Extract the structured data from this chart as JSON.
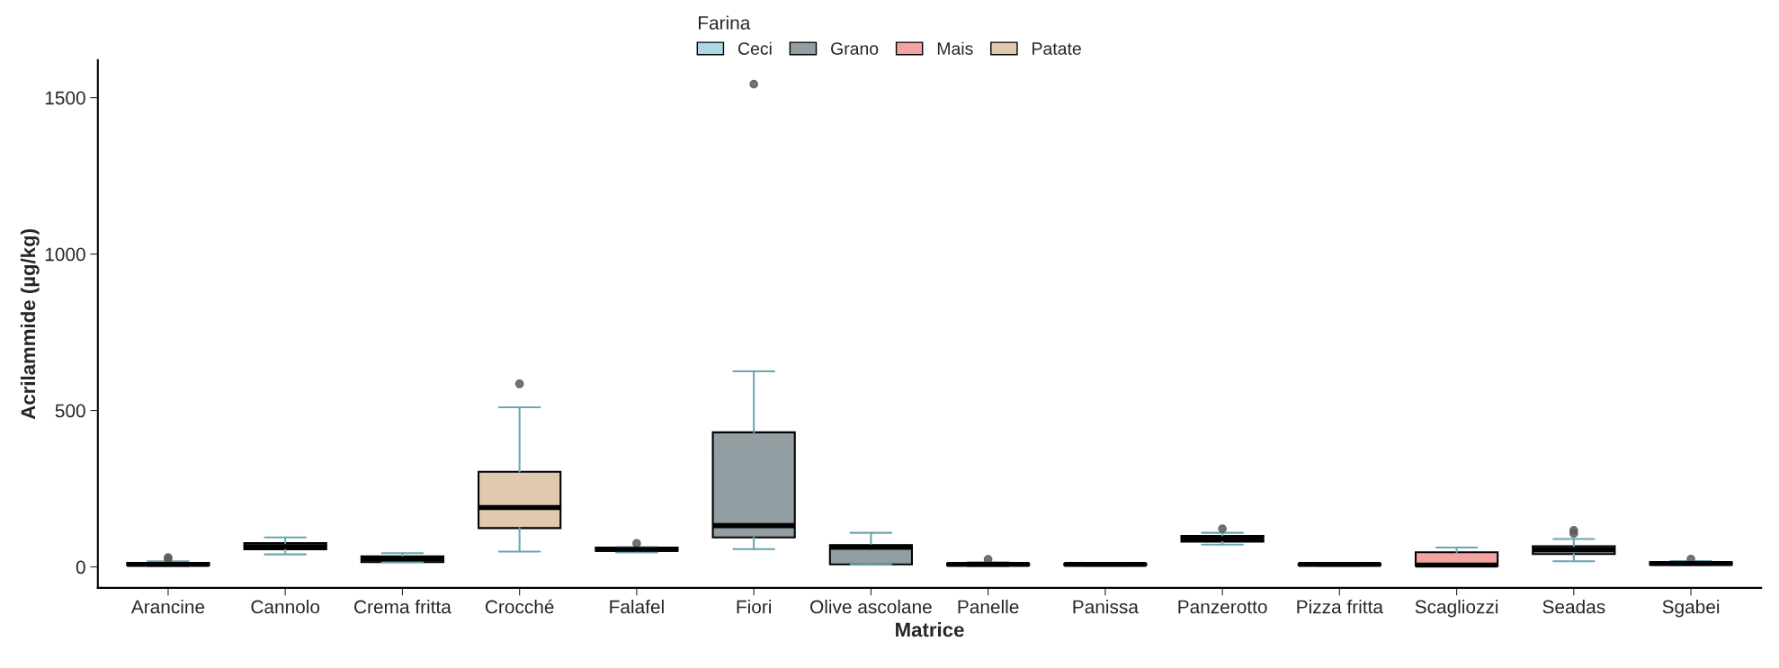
{
  "chart_data": {
    "type": "box",
    "xlabel": "Matrice",
    "ylabel": "Acrilammide (µg/kg)",
    "legend_title": "Farina",
    "legend": "top",
    "categories": [
      "Arancine",
      "Cannolo",
      "Crema fritta",
      "Crocché",
      "Falafel",
      "Fiori",
      "Olive ascolane",
      "Panelle",
      "Panissa",
      "Panzerotto",
      "Pizza fritta",
      "Scagliozzi",
      "Seadas",
      "Sgabei"
    ],
    "ylim": [
      -67,
      1620
    ],
    "yticks": [
      0,
      500,
      1000,
      1500
    ],
    "grid": false,
    "series": [
      {
        "name": "Ceci",
        "color": "#add8e6",
        "boxes": [
          null,
          null,
          null,
          null,
          {
            "low": 46,
            "q1": 51,
            "median": 56,
            "q3": 62,
            "high": 63,
            "outliers": [
              75
            ]
          },
          null,
          null,
          {
            "low": 2,
            "q1": 5,
            "median": 8,
            "q3": 11,
            "high": 15,
            "outliers": [
              24
            ]
          },
          {
            "low": 4,
            "q1": 6,
            "median": 8,
            "q3": 10,
            "high": 12
          },
          null,
          null,
          null,
          null,
          null
        ]
      },
      {
        "name": "Grano",
        "color": "#939ea3",
        "boxes": [
          {
            "low": 2,
            "q1": 5,
            "median": 8,
            "q3": 13,
            "high": 18,
            "outliers": [
              25,
              30
            ]
          },
          {
            "low": 40,
            "q1": 56,
            "median": 65,
            "q3": 76,
            "high": 94
          },
          {
            "low": 15,
            "q1": 15,
            "median": 25,
            "q3": 34,
            "high": 44
          },
          null,
          null,
          {
            "low": 57,
            "q1": 94,
            "median": 132,
            "q3": 430,
            "high": 625,
            "outliers": [
              1543
            ]
          },
          {
            "low": 8,
            "q1": 8,
            "median": 63,
            "q3": 70,
            "high": 109
          },
          null,
          null,
          {
            "low": 71,
            "q1": 81,
            "median": 90,
            "q3": 99,
            "high": 109,
            "outliers": [
              122
            ]
          },
          {
            "low": 3,
            "q1": 5,
            "median": 8,
            "q3": 10,
            "high": 11
          },
          null,
          {
            "low": 18,
            "q1": 41,
            "median": 55,
            "q3": 66,
            "high": 89,
            "outliers": [
              107,
              117
            ]
          },
          {
            "low": 5,
            "q1": 7,
            "median": 11,
            "q3": 15,
            "high": 19,
            "outliers": [
              25
            ]
          }
        ]
      },
      {
        "name": "Mais",
        "color": "#f4a3a3",
        "boxes": [
          null,
          null,
          null,
          null,
          null,
          null,
          null,
          null,
          null,
          null,
          null,
          {
            "low": 2,
            "q1": 3,
            "median": 6,
            "q3": 47,
            "high": 62
          },
          null,
          null
        ]
      },
      {
        "name": "Patate",
        "color": "#e0c9ae",
        "boxes": [
          null,
          null,
          null,
          {
            "low": 49,
            "q1": 124,
            "median": 190,
            "q3": 304,
            "high": 510,
            "outliers": [
              585
            ]
          },
          null,
          null,
          null,
          null,
          null,
          null,
          null,
          null,
          null,
          null
        ]
      }
    ]
  }
}
